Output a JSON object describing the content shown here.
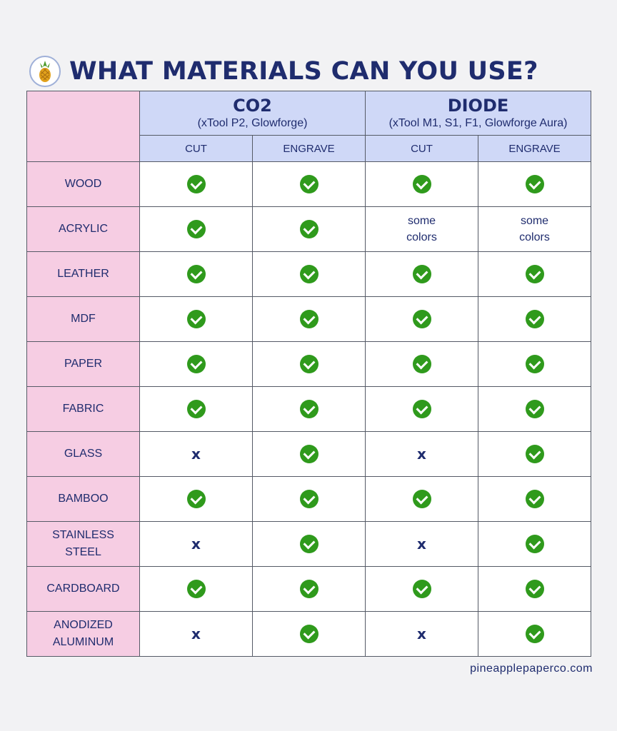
{
  "header": {
    "title": "WHAT MATERIALS CAN YOU USE?",
    "logo_icon": "pineapple-icon"
  },
  "groups": [
    {
      "name": "CO2",
      "subtitle": "(xTool P2, Glowforge)"
    },
    {
      "name": "DIODE",
      "subtitle": "(xTool M1, S1, F1, Glowforge Aura)"
    }
  ],
  "subcolumns": [
    "CUT",
    "ENGRAVE",
    "CUT",
    "ENGRAVE"
  ],
  "rows": [
    {
      "material": "WOOD",
      "values": [
        "check",
        "check",
        "check",
        "check"
      ]
    },
    {
      "material": "ACRYLIC",
      "values": [
        "check",
        "check",
        "some colors",
        "some colors"
      ]
    },
    {
      "material": "LEATHER",
      "values": [
        "check",
        "check",
        "check",
        "check"
      ]
    },
    {
      "material": "MDF",
      "values": [
        "check",
        "check",
        "check",
        "check"
      ]
    },
    {
      "material": "PAPER",
      "values": [
        "check",
        "check",
        "check",
        "check"
      ]
    },
    {
      "material": "FABRIC",
      "values": [
        "check",
        "check",
        "check",
        "check"
      ]
    },
    {
      "material": "GLASS",
      "values": [
        "x",
        "check",
        "x",
        "check"
      ]
    },
    {
      "material": "BAMBOO",
      "values": [
        "check",
        "check",
        "check",
        "check"
      ]
    },
    {
      "material": "STAINLESS STEEL",
      "values": [
        "x",
        "check",
        "x",
        "check"
      ]
    },
    {
      "material": "CARDBOARD",
      "values": [
        "check",
        "check",
        "check",
        "check"
      ]
    },
    {
      "material": "ANODIZED ALUMINUM",
      "values": [
        "x",
        "check",
        "x",
        "check"
      ]
    }
  ],
  "footer": {
    "url": "pineapplepaperco.com"
  },
  "colors": {
    "title": "#1f2c6e",
    "header_bg": "#cfd8f7",
    "material_bg": "#f6cde3",
    "check": "#2f9a1c"
  }
}
